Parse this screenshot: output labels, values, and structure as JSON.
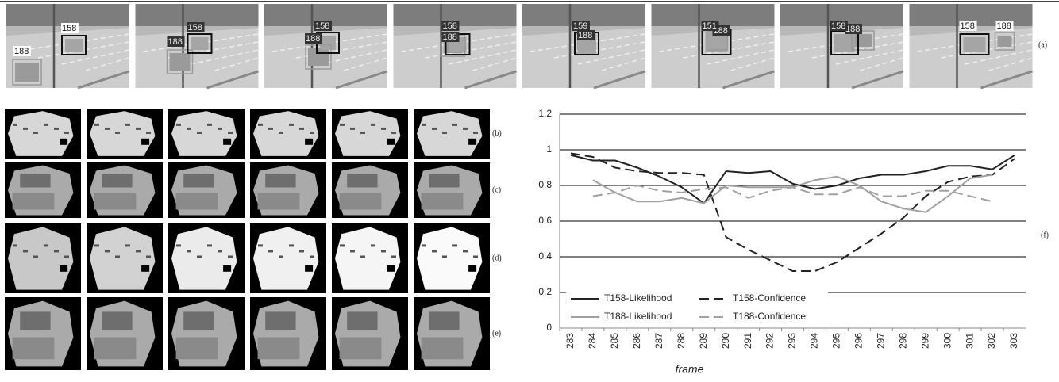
{
  "figure": {
    "panel_labels": [
      "(a)",
      "(b)",
      "(c)",
      "(d)",
      "(e)",
      "(f)"
    ],
    "frames": [
      {
        "labels": [
          "188",
          "158"
        ]
      },
      {
        "labels": [
          "188",
          "158"
        ]
      },
      {
        "labels": [
          "188",
          "158"
        ]
      },
      {
        "labels": [
          "188",
          "158"
        ]
      },
      {
        "labels": [
          "188",
          "159"
        ]
      },
      {
        "labels": [
          "188",
          "151"
        ]
      },
      {
        "labels": [
          "188",
          "158"
        ]
      },
      {
        "labels": [
          "188",
          "158"
        ]
      }
    ]
  },
  "chart_data": {
    "type": "line",
    "x_label": "frame",
    "categories": [
      "283",
      "284",
      "285",
      "286",
      "287",
      "288",
      "289",
      "290",
      "291",
      "292",
      "293",
      "294",
      "295",
      "296",
      "297",
      "298",
      "299",
      "300",
      "301",
      "302",
      "303"
    ],
    "ylim": [
      0,
      1.2
    ],
    "yticks": [
      0,
      0.2,
      0.4,
      0.6,
      0.8,
      1,
      1.2
    ],
    "grid": true,
    "series": [
      {
        "name": "T158-Likelihood",
        "color": "#222222",
        "style": "solid",
        "values": [
          0.97,
          0.94,
          0.94,
          0.9,
          0.85,
          0.79,
          0.7,
          0.88,
          0.87,
          0.88,
          0.81,
          0.78,
          0.8,
          0.84,
          0.86,
          0.86,
          0.88,
          0.91,
          0.91,
          0.89,
          0.97
        ]
      },
      {
        "name": "T158-Confidence",
        "color": "#222222",
        "style": "dashed",
        "values": [
          0.98,
          0.96,
          0.9,
          0.88,
          0.87,
          0.87,
          0.86,
          0.51,
          0.44,
          0.38,
          0.32,
          0.32,
          0.37,
          0.45,
          0.53,
          0.62,
          0.74,
          0.82,
          0.85,
          0.86,
          0.95
        ]
      },
      {
        "name": "T188-Likelihood",
        "color": "#a0a0a0",
        "style": "solid",
        "values": [
          null,
          0.83,
          0.76,
          0.71,
          0.71,
          0.73,
          0.7,
          0.8,
          0.79,
          0.79,
          0.79,
          0.83,
          0.85,
          0.8,
          0.71,
          0.67,
          0.65,
          0.74,
          0.84,
          0.86,
          null
        ]
      },
      {
        "name": "T188-Confidence",
        "color": "#a0a0a0",
        "style": "dashed",
        "values": [
          null,
          0.74,
          0.76,
          0.8,
          0.77,
          0.76,
          0.78,
          0.79,
          0.73,
          0.77,
          0.79,
          0.75,
          0.75,
          0.79,
          0.74,
          0.74,
          0.77,
          0.77,
          0.74,
          0.71,
          null
        ]
      }
    ]
  }
}
